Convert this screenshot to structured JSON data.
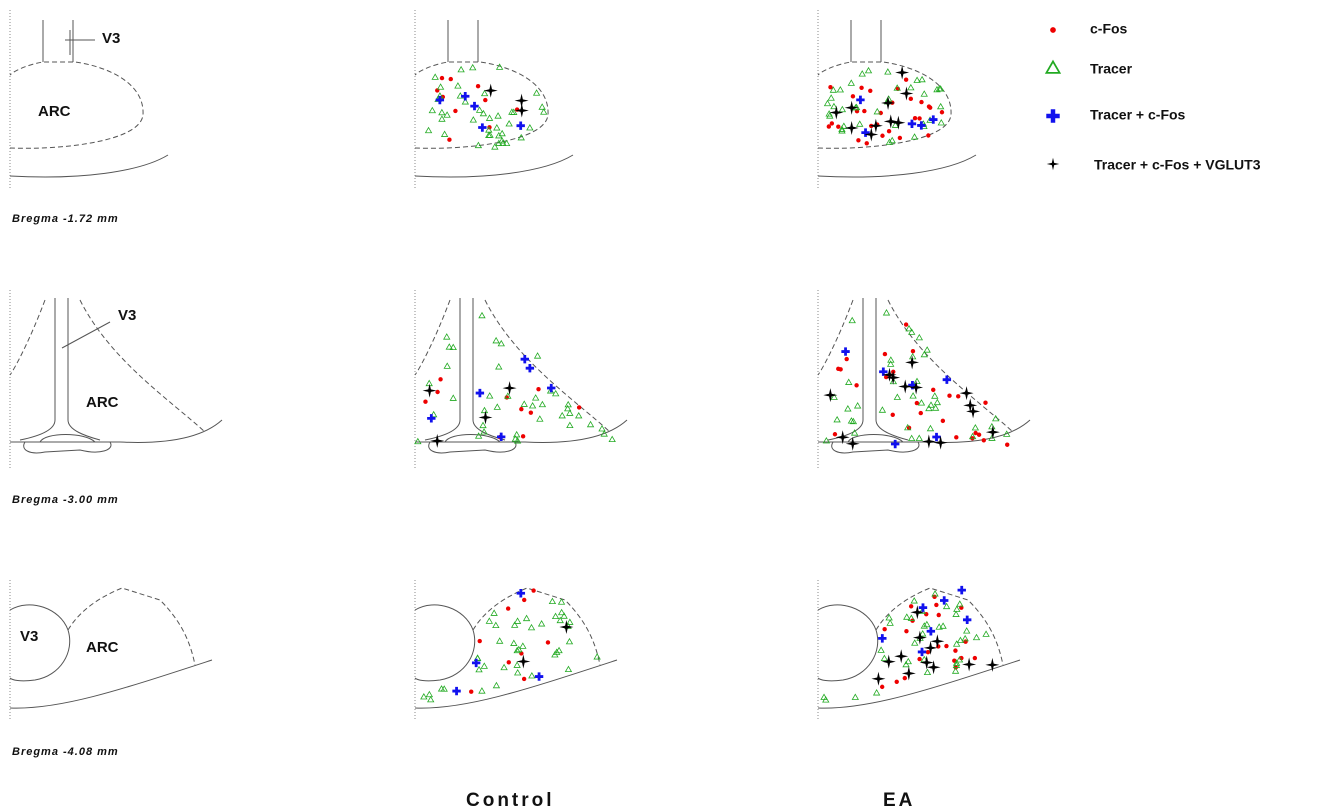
{
  "rows": [
    {
      "bregma": "Bregma -1.72 mm",
      "v3": "V3",
      "arc": "ARC"
    },
    {
      "bregma": "Bregma -3.00 mm",
      "v3": "V3",
      "arc": "ARC"
    },
    {
      "bregma": "Bregma -4.08 mm",
      "v3": "V3",
      "arc": "ARC"
    }
  ],
  "columns": [
    "Control",
    "EA"
  ],
  "legend": [
    "c-Fos",
    "Tracer",
    "Tracer + c-Fos",
    "Tracer + c-Fos + VGLUT3"
  ]
}
